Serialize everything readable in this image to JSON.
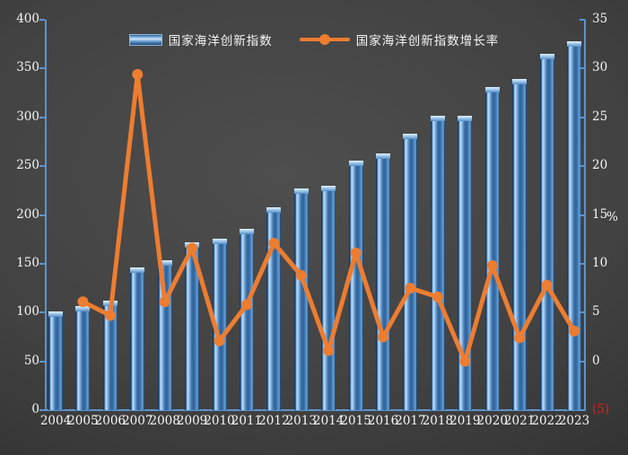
{
  "legend": {
    "bar_label": "国家海洋创新指数",
    "line_label": "国家海洋创新指数增长率"
  },
  "chart_data": {
    "type": "combo-bar-line",
    "categories": [
      "2004",
      "2005",
      "2006",
      "2007",
      "2008",
      "2009",
      "2010",
      "2011",
      "2012",
      "2013",
      "2014",
      "2015",
      "2016",
      "2017",
      "2018",
      "2019",
      "2020",
      "2021",
      "2022",
      "2023"
    ],
    "series": [
      {
        "name": "国家海洋创新指数",
        "type": "bar",
        "axis": "left",
        "color": "#5b9bd5",
        "values": [
          101,
          107,
          112,
          146,
          154,
          172,
          176,
          186,
          208,
          227,
          230,
          256,
          263,
          283,
          302,
          302,
          331,
          339,
          365,
          378
        ]
      },
      {
        "name": "国家海洋创新指数增长率",
        "type": "line",
        "axis": "right",
        "unit": "%",
        "color": "#ed7d31",
        "x": [
          "2005",
          "2006",
          "2007",
          "2008",
          "2009",
          "2010",
          "2011",
          "2012",
          "2013",
          "2014",
          "2015",
          "2016",
          "2017",
          "2018",
          "2019",
          "2020",
          "2021",
          "2022",
          "2023"
        ],
        "values": [
          6.1,
          4.7,
          29.4,
          6.1,
          11.6,
          2.1,
          5.8,
          12.1,
          8.8,
          1.1,
          11.1,
          2.5,
          7.5,
          6.6,
          0.0,
          9.8,
          2.4,
          7.8,
          3.1
        ]
      }
    ],
    "left_axis": {
      "min": 0,
      "max": 400,
      "step": 50,
      "tick_labels": [
        "400",
        "350",
        "300",
        "250",
        "200",
        "150",
        "100",
        "50",
        "0"
      ]
    },
    "right_axis": {
      "min": -5,
      "max": 35,
      "step": 5,
      "tick_labels": [
        "35",
        "30",
        "25",
        "20",
        "15",
        "10",
        "5",
        "0",
        "(5)"
      ],
      "title": "%",
      "negative_label_color": "#e01f1f"
    },
    "grid": false,
    "legend_position": "top-center",
    "background": "dark-gray-radial",
    "axis_color": "#5b94cc",
    "label_color": "#f5f5f5"
  }
}
